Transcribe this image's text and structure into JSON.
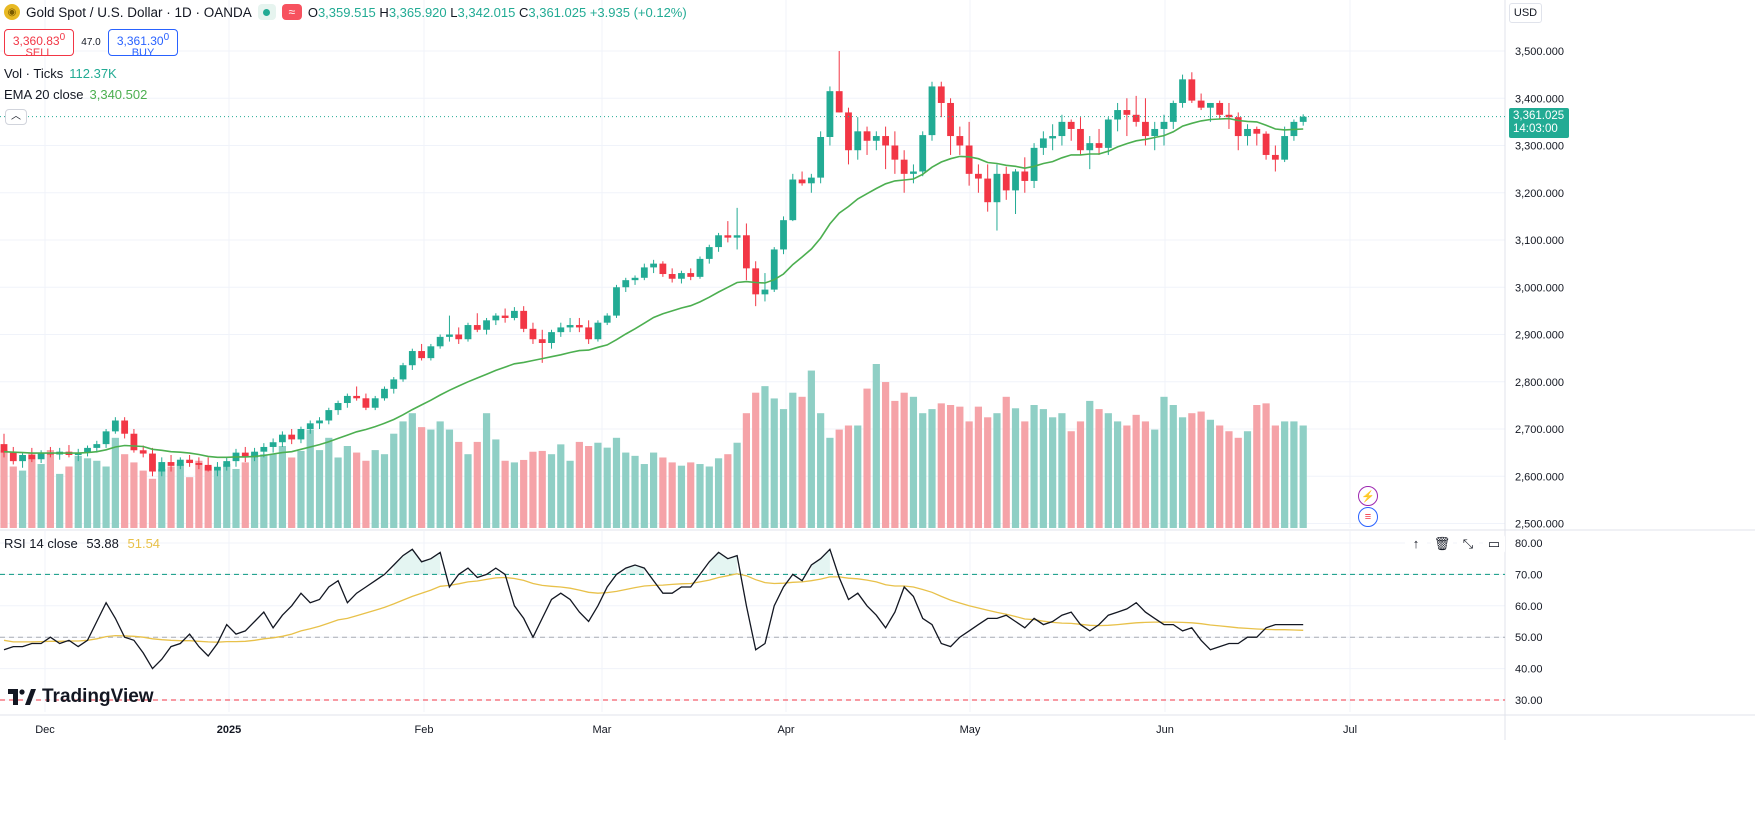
{
  "header": {
    "title": "Gold Spot / U.S. Dollar · 1D · OANDA",
    "ohlc": {
      "o_label": "O",
      "o": "3,359.515",
      "h_label": "H",
      "h": "3,365.920",
      "l_label": "L",
      "l": "3,342.015",
      "c_label": "C",
      "c": "3,361.025",
      "change": "+3.935 (+0.12%)"
    },
    "sell_price": "3,360.83",
    "sell_price_sup": "0",
    "sell_label": "SELL",
    "buy_price": "3,361.30",
    "buy_price_sup": "0",
    "buy_label": "BUY",
    "spread": "47.0",
    "currency": "USD",
    "icons": [
      "gold-coin-icon",
      "market-open-dot-icon",
      "wave-icon",
      "chevron-up-icon"
    ]
  },
  "indicators": {
    "vol": {
      "label": "Vol · Ticks",
      "value": "112.37K"
    },
    "ema": {
      "label": "EMA 20 close",
      "value": "3,340.502"
    },
    "rsi": {
      "label": "RSI 14 close",
      "value": "53.88",
      "ma_value": "51.54"
    }
  },
  "last_price": {
    "price": "3,361.025",
    "countdown": "14:03:00"
  },
  "branding": "TradingView",
  "rsi_tools": [
    "arrow-up-icon",
    "trash-icon",
    "collapse-icon",
    "maximize-icon"
  ],
  "event_icons": [
    "lightning-icon",
    "us-flag-icon"
  ],
  "colors": {
    "up": "#22ab94",
    "down": "#f23645",
    "ema": "#4caf50",
    "rsi": "#131722",
    "rsi_ma": "#e8c14a",
    "vol_up": "#8fcfc5",
    "vol_down": "#f5a3a8"
  },
  "chart_data": {
    "type": "candlestick",
    "symbol": "Gold Spot / U.S. Dollar",
    "interval": "1D",
    "price_axis": {
      "ticks": [
        "3,500.000",
        "3,400.000",
        "3,300.000",
        "3,200.000",
        "3,100.000",
        "3,000.000",
        "2,900.000",
        "2,800.000",
        "2,700.000",
        "2,600.000",
        "2,500.000"
      ],
      "range": [
        2500,
        3500
      ]
    },
    "rsi_axis": {
      "ticks": [
        "80.00",
        "70.00",
        "60.00",
        "50.00",
        "40.00",
        "30.00"
      ],
      "range": [
        30,
        80
      ],
      "bands": [
        70,
        30
      ],
      "mid": 50
    },
    "time_axis": [
      "Dec",
      "2025",
      "Feb",
      "Mar",
      "Apr",
      "May",
      "Jun",
      "Jul"
    ],
    "candles": [
      [
        2668,
        2690,
        2640,
        2650
      ],
      [
        2650,
        2662,
        2625,
        2632
      ],
      [
        2632,
        2650,
        2618,
        2645
      ],
      [
        2645,
        2660,
        2630,
        2636
      ],
      [
        2636,
        2655,
        2628,
        2650
      ],
      [
        2650,
        2662,
        2640,
        2646
      ],
      [
        2646,
        2660,
        2635,
        2652
      ],
      [
        2652,
        2666,
        2640,
        2645
      ],
      [
        2645,
        2658,
        2632,
        2650
      ],
      [
        2650,
        2665,
        2642,
        2660
      ],
      [
        2660,
        2675,
        2650,
        2668
      ],
      [
        2668,
        2700,
        2660,
        2695
      ],
      [
        2695,
        2725,
        2690,
        2718
      ],
      [
        2718,
        2725,
        2680,
        2690
      ],
      [
        2690,
        2700,
        2650,
        2655
      ],
      [
        2655,
        2665,
        2640,
        2648
      ],
      [
        2648,
        2660,
        2600,
        2610
      ],
      [
        2610,
        2640,
        2600,
        2630
      ],
      [
        2630,
        2645,
        2610,
        2622
      ],
      [
        2622,
        2640,
        2615,
        2635
      ],
      [
        2635,
        2645,
        2620,
        2628
      ],
      [
        2628,
        2640,
        2615,
        2624
      ],
      [
        2624,
        2640,
        2610,
        2612
      ],
      [
        2612,
        2630,
        2600,
        2620
      ],
      [
        2620,
        2640,
        2612,
        2632
      ],
      [
        2632,
        2658,
        2620,
        2650
      ],
      [
        2650,
        2662,
        2630,
        2640
      ],
      [
        2640,
        2660,
        2632,
        2652
      ],
      [
        2652,
        2670,
        2640,
        2662
      ],
      [
        2662,
        2680,
        2650,
        2672
      ],
      [
        2672,
        2695,
        2662,
        2688
      ],
      [
        2688,
        2700,
        2668,
        2678
      ],
      [
        2678,
        2705,
        2670,
        2700
      ],
      [
        2700,
        2718,
        2690,
        2712
      ],
      [
        2712,
        2725,
        2700,
        2718
      ],
      [
        2718,
        2745,
        2710,
        2740
      ],
      [
        2740,
        2760,
        2730,
        2755
      ],
      [
        2755,
        2775,
        2745,
        2770
      ],
      [
        2770,
        2790,
        2760,
        2765
      ],
      [
        2765,
        2775,
        2740,
        2745
      ],
      [
        2745,
        2770,
        2740,
        2765
      ],
      [
        2765,
        2790,
        2760,
        2785
      ],
      [
        2785,
        2810,
        2775,
        2805
      ],
      [
        2805,
        2840,
        2800,
        2835
      ],
      [
        2835,
        2870,
        2825,
        2865
      ],
      [
        2865,
        2880,
        2845,
        2850
      ],
      [
        2850,
        2880,
        2845,
        2875
      ],
      [
        2875,
        2900,
        2870,
        2895
      ],
      [
        2895,
        2940,
        2885,
        2900
      ],
      [
        2900,
        2915,
        2880,
        2890
      ],
      [
        2890,
        2925,
        2885,
        2920
      ],
      [
        2920,
        2945,
        2905,
        2910
      ],
      [
        2910,
        2935,
        2900,
        2930
      ],
      [
        2930,
        2945,
        2920,
        2940
      ],
      [
        2940,
        2955,
        2925,
        2935
      ],
      [
        2935,
        2958,
        2930,
        2950
      ],
      [
        2950,
        2960,
        2905,
        2912
      ],
      [
        2912,
        2925,
        2880,
        2890
      ],
      [
        2890,
        2910,
        2840,
        2882
      ],
      [
        2882,
        2910,
        2870,
        2905
      ],
      [
        2905,
        2925,
        2895,
        2915
      ],
      [
        2915,
        2935,
        2905,
        2920
      ],
      [
        2920,
        2935,
        2905,
        2915
      ],
      [
        2915,
        2930,
        2880,
        2890
      ],
      [
        2890,
        2930,
        2885,
        2925
      ],
      [
        2925,
        2945,
        2920,
        2940
      ],
      [
        2940,
        3005,
        2935,
        3000
      ],
      [
        3000,
        3020,
        2990,
        3015
      ],
      [
        3015,
        3025,
        3005,
        3020
      ],
      [
        3020,
        3050,
        3015,
        3042
      ],
      [
        3042,
        3058,
        3030,
        3050
      ],
      [
        3050,
        3055,
        3022,
        3028
      ],
      [
        3028,
        3040,
        3010,
        3018
      ],
      [
        3018,
        3035,
        3008,
        3030
      ],
      [
        3030,
        3040,
        3015,
        3022
      ],
      [
        3022,
        3065,
        3018,
        3060
      ],
      [
        3060,
        3090,
        3050,
        3085
      ],
      [
        3085,
        3115,
        3075,
        3110
      ],
      [
        3110,
        3140,
        3095,
        3105
      ],
      [
        3105,
        3168,
        3080,
        3110
      ],
      [
        3110,
        3135,
        3015,
        3040
      ],
      [
        3040,
        3055,
        2960,
        2985
      ],
      [
        2985,
        3030,
        2970,
        2995
      ],
      [
        2995,
        3085,
        2990,
        3080
      ],
      [
        3080,
        3150,
        3070,
        3142
      ],
      [
        3142,
        3240,
        3140,
        3228
      ],
      [
        3228,
        3245,
        3215,
        3220
      ],
      [
        3220,
        3240,
        3200,
        3232
      ],
      [
        3232,
        3330,
        3220,
        3318
      ],
      [
        3318,
        3425,
        3300,
        3415
      ],
      [
        3415,
        3500,
        3370,
        3370
      ],
      [
        3370,
        3380,
        3260,
        3290
      ],
      [
        3290,
        3360,
        3270,
        3330
      ],
      [
        3330,
        3340,
        3280,
        3310
      ],
      [
        3310,
        3330,
        3290,
        3320
      ],
      [
        3320,
        3340,
        3250,
        3300
      ],
      [
        3300,
        3330,
        3240,
        3270
      ],
      [
        3270,
        3290,
        3200,
        3240
      ],
      [
        3240,
        3260,
        3220,
        3245
      ],
      [
        3245,
        3330,
        3235,
        3322
      ],
      [
        3322,
        3435,
        3310,
        3425
      ],
      [
        3425,
        3435,
        3360,
        3390
      ],
      [
        3390,
        3400,
        3280,
        3320
      ],
      [
        3320,
        3340,
        3280,
        3300
      ],
      [
        3300,
        3350,
        3215,
        3240
      ],
      [
        3240,
        3260,
        3200,
        3230
      ],
      [
        3230,
        3260,
        3160,
        3180
      ],
      [
        3180,
        3260,
        3120,
        3240
      ],
      [
        3240,
        3255,
        3185,
        3205
      ],
      [
        3205,
        3250,
        3155,
        3245
      ],
      [
        3245,
        3275,
        3200,
        3225
      ],
      [
        3225,
        3305,
        3210,
        3295
      ],
      [
        3295,
        3330,
        3280,
        3315
      ],
      [
        3315,
        3345,
        3290,
        3320
      ],
      [
        3320,
        3365,
        3300,
        3350
      ],
      [
        3350,
        3355,
        3310,
        3335
      ],
      [
        3335,
        3360,
        3280,
        3290
      ],
      [
        3290,
        3320,
        3250,
        3305
      ],
      [
        3305,
        3335,
        3280,
        3295
      ],
      [
        3295,
        3360,
        3280,
        3355
      ],
      [
        3355,
        3390,
        3330,
        3375
      ],
      [
        3375,
        3400,
        3320,
        3365
      ],
      [
        3365,
        3405,
        3340,
        3350
      ],
      [
        3350,
        3400,
        3300,
        3320
      ],
      [
        3320,
        3350,
        3290,
        3335
      ],
      [
        3335,
        3365,
        3300,
        3350
      ],
      [
        3350,
        3395,
        3335,
        3390
      ],
      [
        3390,
        3450,
        3380,
        3440
      ],
      [
        3440,
        3455,
        3390,
        3395
      ],
      [
        3395,
        3410,
        3375,
        3380
      ],
      [
        3380,
        3390,
        3350,
        3390
      ],
      [
        3390,
        3395,
        3355,
        3365
      ],
      [
        3365,
        3390,
        3335,
        3360
      ],
      [
        3360,
        3370,
        3290,
        3320
      ],
      [
        3320,
        3345,
        3300,
        3335
      ],
      [
        3335,
        3340,
        3300,
        3325
      ],
      [
        3325,
        3330,
        3270,
        3280
      ],
      [
        3280,
        3300,
        3245,
        3270
      ],
      [
        3270,
        3340,
        3265,
        3320
      ],
      [
        3320,
        3355,
        3310,
        3350
      ],
      [
        3350,
        3366,
        3342,
        3361
      ]
    ],
    "ema20": [
      2652,
      2651,
      2650,
      2649,
      2649,
      2649,
      2649,
      2649,
      2649,
      2650,
      2652,
      2656,
      2662,
      2665,
      2664,
      2663,
      2657,
      2655,
      2652,
      2651,
      2649,
      2646,
      2642,
      2640,
      2640,
      2641,
      2641,
      2642,
      2644,
      2647,
      2650,
      2652,
      2657,
      2662,
      2667,
      2673,
      2680,
      2687,
      2694,
      2699,
      2705,
      2712,
      2720,
      2730,
      2741,
      2751,
      2761,
      2772,
      2782,
      2791,
      2800,
      2808,
      2816,
      2824,
      2831,
      2838,
      2841,
      2845,
      2849,
      2853,
      2857,
      2862,
      2866,
      2867,
      2873,
      2878,
      2889,
      2901,
      2912,
      2924,
      2936,
      2944,
      2950,
      2956,
      2961,
      2969,
      2979,
      2990,
      3000,
      3010,
      3012,
      3010,
      3009,
      3016,
      3028,
      3048,
      3064,
      3081,
      3104,
      3134,
      3157,
      3171,
      3187,
      3198,
      3209,
      3219,
      3225,
      3227,
      3229,
      3239,
      3254,
      3265,
      3272,
      3277,
      3276,
      3272,
      3264,
      3262,
      3258,
      3256,
      3252,
      3256,
      3262,
      3266,
      3274,
      3280,
      3280,
      3282,
      3282,
      3288,
      3297,
      3304,
      3310,
      3313,
      3317,
      3321,
      3329,
      3341,
      3347,
      3352,
      3355,
      3356,
      3357,
      3353,
      3351,
      3350,
      3343,
      3335,
      3333,
      3334,
      3335
    ],
    "volume": [
      95,
      75,
      70,
      92,
      78,
      95,
      66,
      75,
      88,
      85,
      82,
      75,
      110,
      90,
      80,
      70,
      60,
      72,
      75,
      78,
      62,
      82,
      75,
      70,
      78,
      72,
      80,
      92,
      90,
      90,
      100,
      86,
      94,
      120,
      95,
      110,
      86,
      100,
      92,
      82,
      95,
      90,
      115,
      130,
      140,
      123,
      120,
      130,
      120,
      105,
      90,
      105,
      140,
      108,
      82,
      80,
      83,
      93,
      94,
      90,
      102,
      82,
      105,
      100,
      104,
      98,
      110,
      92,
      88,
      78,
      92,
      86,
      80,
      76,
      80,
      78,
      75,
      85,
      90,
      104,
      140,
      165,
      173,
      158,
      145,
      165,
      160,
      192,
      140,
      110,
      120,
      125,
      125,
      170,
      200,
      178,
      155,
      165,
      160,
      140,
      145,
      152,
      150,
      148,
      130,
      148,
      135,
      140,
      160,
      146,
      130,
      150,
      145,
      135,
      140,
      118,
      130,
      155,
      145,
      140,
      130,
      125,
      138,
      130,
      120,
      160,
      150,
      135,
      140,
      142,
      132,
      125,
      118,
      110,
      118,
      150,
      152,
      125,
      130,
      130,
      125
    ],
    "rsi": [
      46,
      47,
      47,
      48,
      48,
      50,
      48,
      49,
      47,
      49,
      55,
      61,
      56,
      50,
      49,
      45,
      40,
      43,
      47,
      48,
      51,
      47,
      44,
      48,
      54,
      51,
      52,
      55,
      58,
      53,
      57,
      60,
      64,
      61,
      62,
      66,
      68,
      61,
      64,
      66,
      68,
      70,
      73,
      76,
      78,
      74,
      75,
      77,
      66,
      70,
      72,
      69,
      70,
      72,
      70,
      60,
      56,
      50,
      56,
      62,
      64,
      62,
      58,
      55,
      60,
      66,
      70,
      72,
      73,
      72,
      68,
      64,
      64,
      66,
      66,
      70,
      74,
      77,
      75,
      76,
      60,
      46,
      48,
      60,
      66,
      70,
      68,
      73,
      75,
      78,
      69,
      62,
      64,
      60,
      57,
      53,
      58,
      66,
      63,
      56,
      54,
      48,
      47,
      50,
      52,
      54,
      56,
      56,
      57,
      55,
      53,
      56,
      54,
      55,
      57,
      58,
      54,
      52,
      54,
      57,
      58,
      59,
      61,
      58,
      56,
      54,
      54,
      52,
      53,
      49,
      46,
      47,
      48,
      48,
      50,
      50,
      53,
      54,
      54,
      54,
      54
    ],
    "rsi_ma": [
      49,
      48.5,
      48.5,
      48.5,
      48.6,
      48.7,
      48.7,
      48.8,
      48.8,
      49,
      49.5,
      50.2,
      50.5,
      50.4,
      50.3,
      50,
      49.5,
      49.2,
      49,
      48.9,
      48.9,
      48.7,
      48.5,
      48.4,
      48.6,
      48.6,
      48.7,
      49,
      49.5,
      49.8,
      50.3,
      51,
      52,
      52.7,
      53.5,
      54.5,
      55.5,
      56,
      56.8,
      57.7,
      58.6,
      59.5,
      60.6,
      61.8,
      63,
      64,
      65,
      66.2,
      66.5,
      67,
      67.6,
      67.9,
      68.4,
      68.9,
      69,
      68.7,
      68.1,
      67.1,
      66.5,
      66.2,
      66,
      65.6,
      65,
      64.3,
      64,
      64.2,
      64.6,
      65.2,
      65.8,
      66.3,
      66.5,
      66.6,
      66.8,
      67,
      67.1,
      67.6,
      68.2,
      69,
      69.6,
      70.2,
      69.6,
      68.3,
      67.4,
      67.1,
      67.2,
      67.5,
      67.6,
      68,
      68.5,
      69.2,
      69.2,
      68.8,
      68.6,
      68.2,
      67.6,
      66.7,
      66.3,
      66.3,
      66,
      65.2,
      64.3,
      63,
      61.8,
      60.9,
      60,
      59.3,
      58.6,
      57.9,
      57.3,
      56.6,
      55.8,
      55.6,
      55.1,
      54.7,
      54.5,
      54.4,
      54.1,
      53.8,
      53.7,
      53.8,
      54,
      54.3,
      54.6,
      54.7,
      54.8,
      54.8,
      54.8,
      54.7,
      54.6,
      54.3,
      53.9,
      53.6,
      53.3,
      53,
      52.8,
      52.6,
      52.5,
      52.4,
      52.4,
      52.3,
      52.2
    ]
  }
}
